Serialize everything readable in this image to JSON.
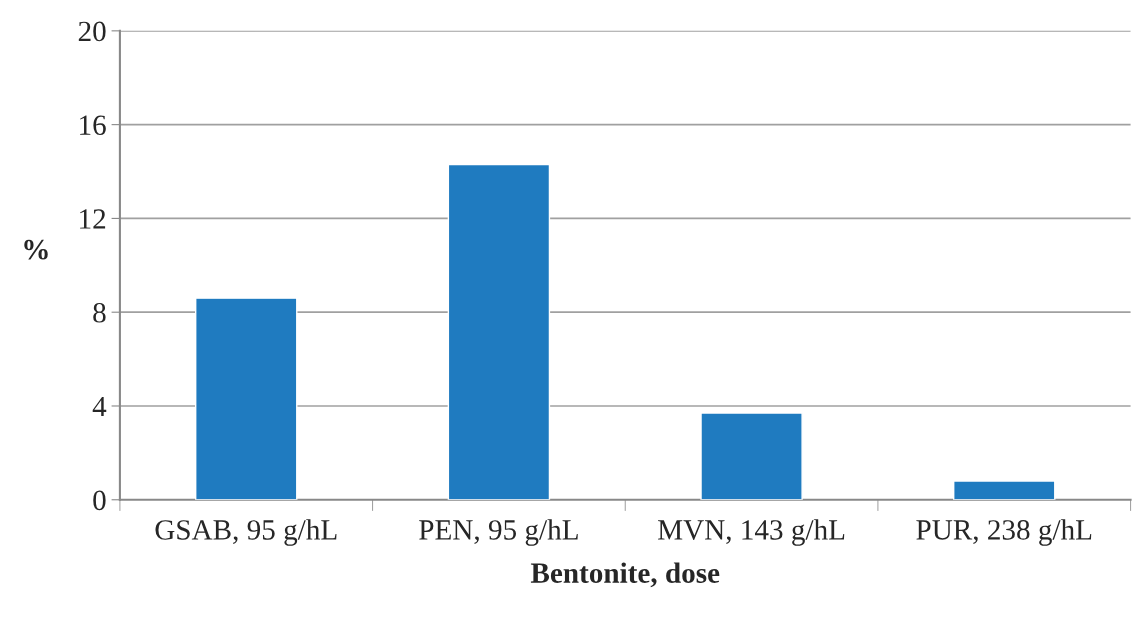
{
  "chart_data": {
    "type": "bar",
    "xlabel": "Bentonite, dose",
    "ylabel": "%",
    "categories": [
      "GSAB, 95 g/hL",
      "PEN, 95 g/hL",
      "MVN, 143 g/hL",
      "PUR, 238 g/hL"
    ],
    "values": [
      8.6,
      14.3,
      3.7,
      0.8
    ],
    "color": "#1f7bc0",
    "ylim": [
      0,
      20
    ],
    "yticks": [
      0,
      4,
      8,
      12,
      16,
      20
    ],
    "grid": "y"
  }
}
